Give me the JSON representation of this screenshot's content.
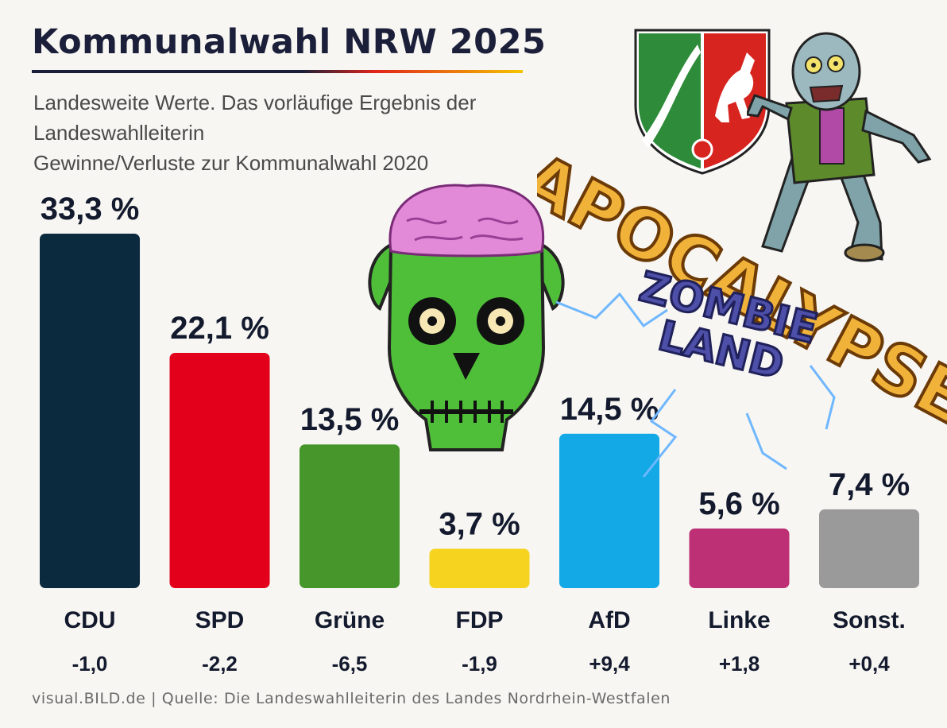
{
  "title": "Kommunalwahl NRW 2025",
  "subtitle_lines": [
    "Landesweite Werte. Das vorläufige Ergebnis der",
    "Landeswahlleiterin",
    "Gewinne/Verluste zur Kommunalwahl 2020"
  ],
  "footer": {
    "source_brand": "visual.BILD.de",
    "separator": "|",
    "source_text": "Quelle: Die Landeswahlleiterin des Landes Nordrhein-Westfalen"
  },
  "overlays": {
    "coat_of_arms": {
      "icon": "nrw-coat-of-arms",
      "colors": [
        "#2e8b3a",
        "#ffffff",
        "#d7241f"
      ]
    },
    "zombie": {
      "icon": "cartoon-zombie"
    },
    "zombie_head": {
      "icon": "zombie-head-with-brain",
      "skin": "#4fbf3a",
      "brain": "#e28ad8"
    },
    "apocalypse_text": {
      "text": "APOCALYPSE",
      "color": "#f1b23a"
    },
    "zombieland_text": {
      "lines": [
        "ZOMBIE",
        "LAND"
      ],
      "color": "#4d4fa8"
    }
  },
  "chart_data": {
    "type": "bar",
    "categories": [
      "CDU",
      "SPD",
      "Grüne",
      "FDP",
      "AfD",
      "Linke",
      "Sonst."
    ],
    "values": [
      33.3,
      22.1,
      13.5,
      3.7,
      14.5,
      5.6,
      7.4
    ],
    "value_labels": [
      "33,3 %",
      "22,1 %",
      "13,5 %",
      "3,7 %",
      "14,5 %",
      "5,6 %",
      "7,4 %"
    ],
    "changes": [
      -1.0,
      -2.2,
      -6.5,
      -1.9,
      9.4,
      1.8,
      0.4
    ],
    "change_labels": [
      "-1,0",
      "-2,2",
      "-6,5",
      "-1,9",
      "+9,4",
      "+1,8",
      "+0,4"
    ],
    "colors": [
      "#0c2a3e",
      "#e3001b",
      "#46962b",
      "#f5d31e",
      "#12a9e6",
      "#be3075",
      "#9a9a9a"
    ],
    "ylim": [
      0,
      33.3
    ],
    "grid": false,
    "legend": "none"
  }
}
